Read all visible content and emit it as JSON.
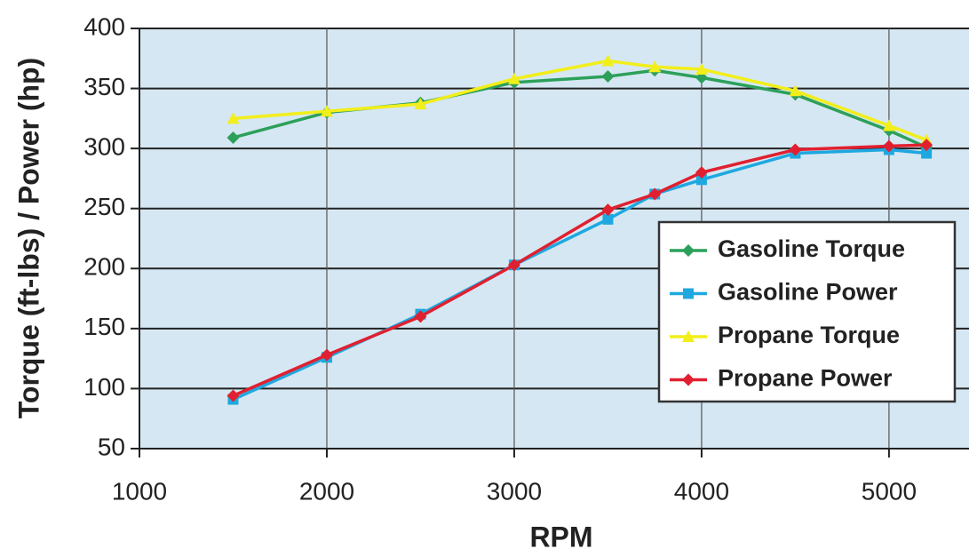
{
  "chart_data": {
    "type": "line",
    "x_label": "RPM",
    "y_label": "Torque (ft-lbs) / Power (hp)",
    "x": [
      1500,
      2000,
      2500,
      3000,
      3500,
      3750,
      4000,
      4500,
      5000,
      5200
    ],
    "series": [
      {
        "name": "Gasoline Torque",
        "color": "#2ca05a",
        "marker": "diamond",
        "values": [
          309,
          330,
          338,
          355,
          360,
          365,
          359,
          345,
          315,
          301
        ]
      },
      {
        "name": "Gasoline Power",
        "color": "#1fa8e0",
        "marker": "square",
        "values": [
          91,
          126,
          162,
          203,
          241,
          262,
          274,
          296,
          299,
          296
        ]
      },
      {
        "name": "Propane Torque",
        "color": "#f2ee1a",
        "marker": "triangle",
        "values": [
          325,
          331,
          337,
          358,
          373,
          368,
          366,
          348,
          319,
          307
        ]
      },
      {
        "name": "Propane Power",
        "color": "#e02030",
        "marker": "diamond",
        "values": [
          94,
          128,
          160,
          203,
          249,
          262,
          280,
          299,
          302,
          303
        ]
      }
    ],
    "xlim": [
      1000,
      5427
    ],
    "ylim": [
      50,
      400
    ],
    "xticks": [
      1000,
      2000,
      3000,
      4000,
      5000
    ],
    "yticks": [
      50,
      100,
      150,
      200,
      250,
      300,
      350,
      400
    ],
    "grid": true,
    "legend": "right"
  }
}
